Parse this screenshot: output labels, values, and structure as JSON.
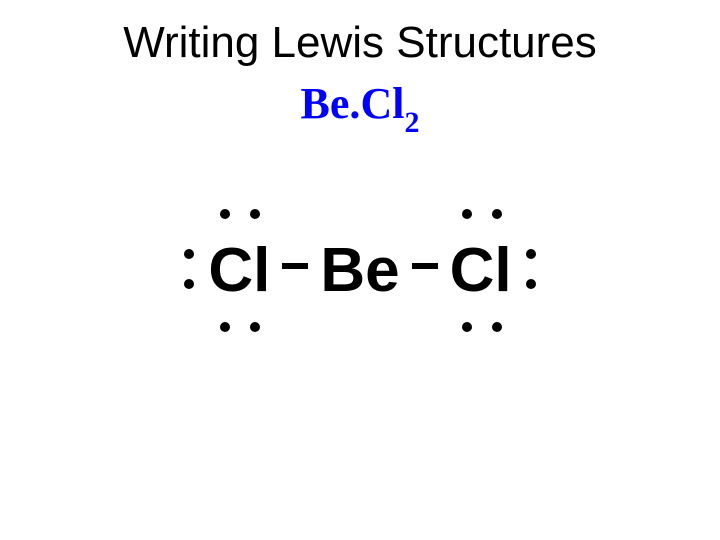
{
  "title": "Writing Lewis Structures",
  "title_fontsize": 44,
  "title_color": "#000000",
  "formula": {
    "part1": "Be.",
    "part2": "Cl",
    "subscript": "2",
    "color": "#0000ff",
    "fontsize": 44
  },
  "lewis_structure": {
    "type": "molecular-diagram",
    "atoms": [
      {
        "symbol": "Cl",
        "lone_pairs": 3,
        "position": "left"
      },
      {
        "symbol": "Be",
        "lone_pairs": 0,
        "position": "center"
      },
      {
        "symbol": "Cl",
        "lone_pairs": 3,
        "position": "right"
      }
    ],
    "bonds": [
      {
        "from": 0,
        "to": 1,
        "order": 1
      },
      {
        "from": 1,
        "to": 2,
        "order": 1
      }
    ],
    "atom_fontsize": 62,
    "atom_color": "#000000",
    "dot_color": "#000000",
    "dot_radius": 5,
    "bond_width": 26,
    "bond_height": 6,
    "background_color": "#ffffff"
  },
  "labels": {
    "left_cl": "Cl",
    "be": "Be",
    "right_cl": "Cl"
  }
}
